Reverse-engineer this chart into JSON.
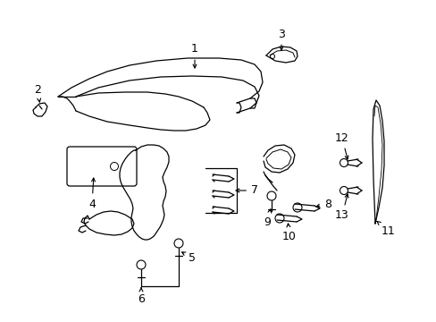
{
  "bg_color": "#ffffff",
  "line_color": "#000000",
  "fig_width": 4.89,
  "fig_height": 3.6,
  "dpi": 100,
  "font_size": 8,
  "arrow_props": {
    "arrowstyle": "->",
    "lw": 0.8,
    "mutation_scale": 7
  }
}
